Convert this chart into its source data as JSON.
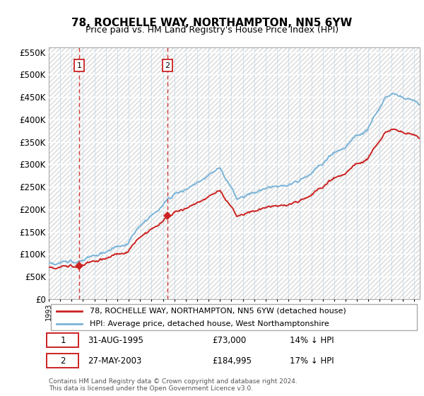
{
  "title": "78, ROCHELLE WAY, NORTHAMPTON, NN5 6YW",
  "subtitle": "Price paid vs. HM Land Registry's House Price Index (HPI)",
  "ylim": [
    0,
    560000
  ],
  "yticks": [
    0,
    50000,
    100000,
    150000,
    200000,
    250000,
    300000,
    350000,
    400000,
    450000,
    500000,
    550000
  ],
  "ytick_labels": [
    "£0",
    "£50K",
    "£100K",
    "£150K",
    "£200K",
    "£250K",
    "£300K",
    "£350K",
    "£400K",
    "£450K",
    "£500K",
    "£550K"
  ],
  "hpi_color": "#7ab4d8",
  "price_color": "#cc2222",
  "t1_year": 1995.66,
  "t1_price": 73000,
  "t2_year": 2003.41,
  "t2_price": 184995,
  "xstart": 1993,
  "xend": 2025.5,
  "legend_line1": "78, ROCHELLE WAY, NORTHAMPTON, NN5 6YW (detached house)",
  "legend_line2": "HPI: Average price, detached house, West Northamptonshire",
  "table_row1": [
    "1",
    "31-AUG-1995",
    "£73,000",
    "14% ↓ HPI"
  ],
  "table_row2": [
    "2",
    "27-MAY-2003",
    "£184,995",
    "17% ↓ HPI"
  ],
  "footnote": "Contains HM Land Registry data © Crown copyright and database right 2024.\nThis data is licensed under the Open Government Licence v3.0.",
  "plot_bg": "#ffffff",
  "hatch_color": "#d8d8d8",
  "grid_color": "#c8daea"
}
